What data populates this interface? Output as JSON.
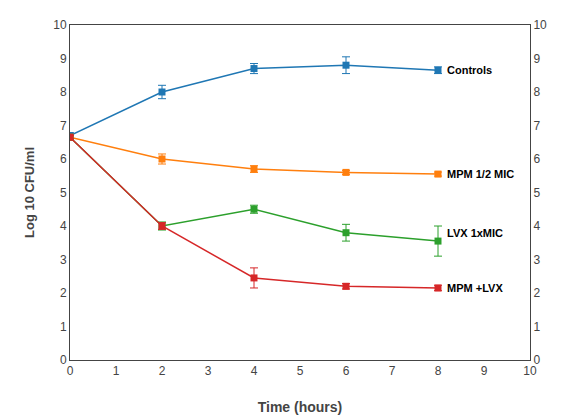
{
  "chart_data": {
    "type": "line",
    "x": [
      0,
      2,
      4,
      6,
      8
    ],
    "series": [
      {
        "values": [
          6.7,
          8.0,
          8.7,
          8.8,
          8.65
        ],
        "error": [
          0.08,
          0.2,
          0.15,
          0.25,
          0.1
        ]
      },
      {
        "values": [
          6.65,
          6.0,
          5.7,
          5.6,
          5.55
        ],
        "error": [
          0.05,
          0.15,
          0.1,
          0.06,
          0.06
        ]
      },
      {
        "values": [
          6.65,
          4.0,
          4.5,
          3.8,
          3.55
        ],
        "error": [
          0.05,
          0.12,
          0.12,
          0.25,
          0.45
        ]
      },
      {
        "values": [
          6.65,
          4.0,
          2.45,
          2.2,
          2.15
        ],
        "error": [
          0.05,
          0.1,
          0.3,
          0.08,
          0.08
        ]
      }
    ],
    "marker": "square",
    "line_style": "solid",
    "xlabel": "Time (hours)",
    "ylabel": "Log 10 CFU/ml",
    "xlim": [
      0,
      10
    ],
    "xticks": [
      0,
      1,
      2,
      3,
      4,
      5,
      6,
      7,
      8,
      9,
      10
    ],
    "ylim": [
      0,
      10
    ],
    "yticks": [
      0,
      1,
      2,
      3,
      4,
      5,
      6,
      7,
      8,
      9,
      10
    ],
    "y2lim": [
      0,
      10
    ],
    "y2ticks": [
      0,
      1,
      2,
      3,
      4,
      5,
      6,
      7,
      8,
      9,
      10
    ],
    "grid": false,
    "annotations": [
      {
        "text": "Controls",
        "x": 8.15,
        "y": 8.65
      },
      {
        "text": "MPM 1/2 MIC",
        "x": 8.15,
        "y": 5.55
      },
      {
        "text": "LVX 1xMIC",
        "x": 8.15,
        "y": 3.8
      },
      {
        "text": "MPM +LVX",
        "x": 8.15,
        "y": 2.15
      }
    ]
  }
}
